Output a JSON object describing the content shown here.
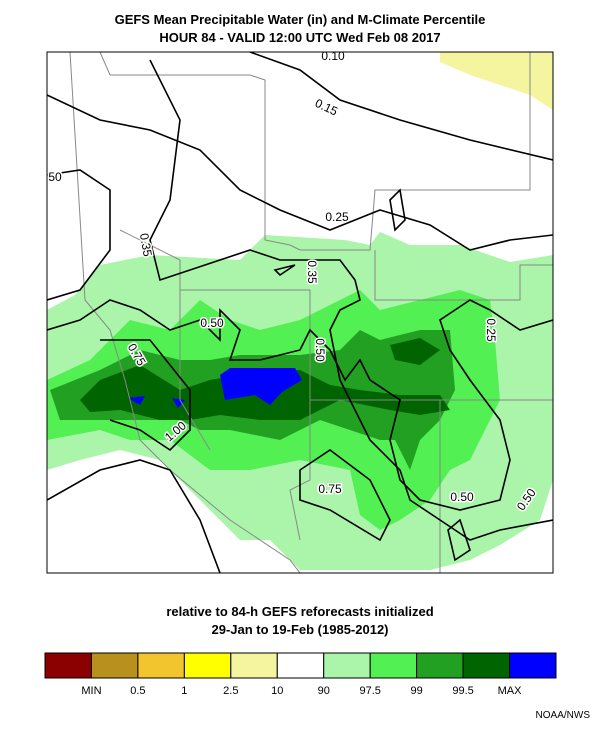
{
  "header": {
    "title": "GEFS Mean Precipitable Water (in) and M-Climate Percentile",
    "subtitle": "HOUR 84 - VALID 12:00 UTC Wed Feb 08 2017"
  },
  "map": {
    "contour_labels": [
      "0.10",
      "0.15",
      "50",
      "0.25",
      "0.35",
      "0.35",
      "0.50",
      "0.75",
      "0.50",
      "0.25",
      "1.00",
      "0.75",
      "0.50",
      "0.50"
    ]
  },
  "footer": {
    "line1": "relative to 84-h GEFS reforecasts initialized",
    "line2": "29-Jan to 19-Feb (1985-2012)"
  },
  "legend": {
    "colors": [
      "#8b0000",
      "#b8901e",
      "#f2c52e",
      "#ffff00",
      "#f5f5a0",
      "#ffffff",
      "#aaf5aa",
      "#52f052",
      "#22a022",
      "#006400",
      "#0000ff"
    ],
    "labels": [
      "MIN",
      "0.5",
      "1",
      "2.5",
      "10",
      "90",
      "97.5",
      "99",
      "99.5",
      "MAX"
    ]
  },
  "credit": "NOAA/NWS"
}
